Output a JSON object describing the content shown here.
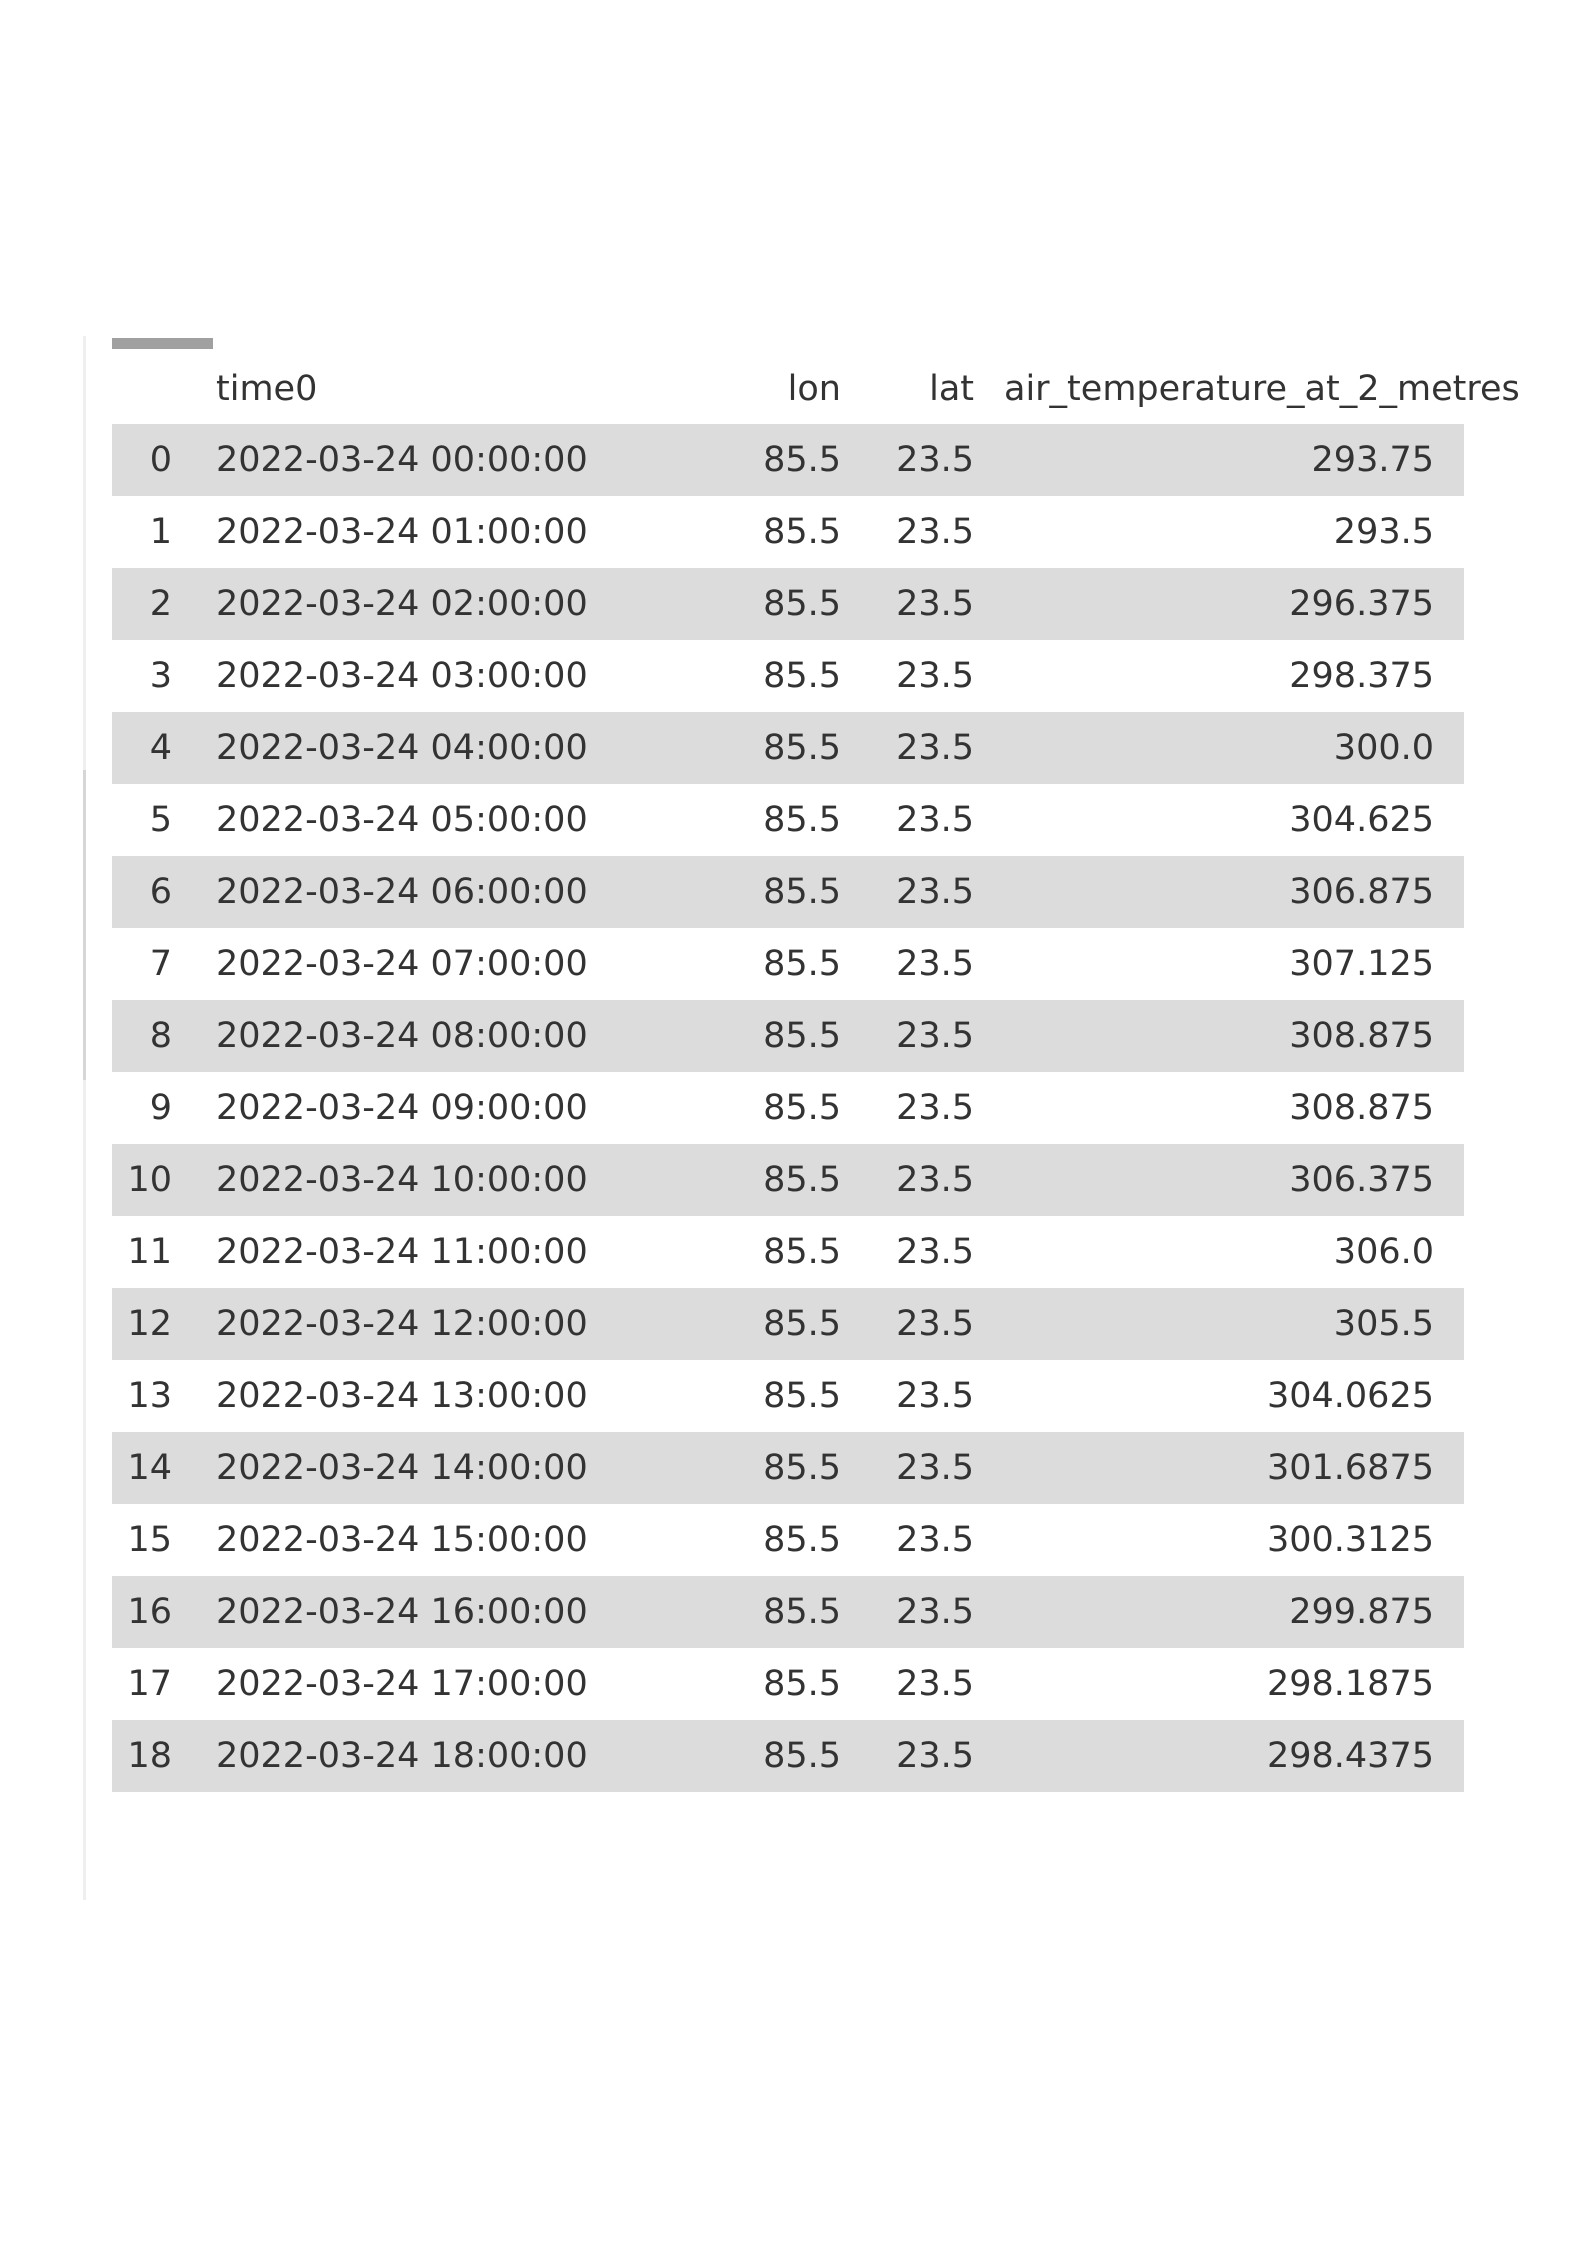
{
  "table": {
    "columns": [
      "",
      "time0",
      "lon",
      "lat",
      "air_temperature_at_2_metres"
    ],
    "rows": [
      [
        "0",
        "2022-03-24 00:00:00",
        "85.5",
        "23.5",
        "293.75"
      ],
      [
        "1",
        "2022-03-24 01:00:00",
        "85.5",
        "23.5",
        "293.5"
      ],
      [
        "2",
        "2022-03-24 02:00:00",
        "85.5",
        "23.5",
        "296.375"
      ],
      [
        "3",
        "2022-03-24 03:00:00",
        "85.5",
        "23.5",
        "298.375"
      ],
      [
        "4",
        "2022-03-24 04:00:00",
        "85.5",
        "23.5",
        "300.0"
      ],
      [
        "5",
        "2022-03-24 05:00:00",
        "85.5",
        "23.5",
        "304.625"
      ],
      [
        "6",
        "2022-03-24 06:00:00",
        "85.5",
        "23.5",
        "306.875"
      ],
      [
        "7",
        "2022-03-24 07:00:00",
        "85.5",
        "23.5",
        "307.125"
      ],
      [
        "8",
        "2022-03-24 08:00:00",
        "85.5",
        "23.5",
        "308.875"
      ],
      [
        "9",
        "2022-03-24 09:00:00",
        "85.5",
        "23.5",
        "308.875"
      ],
      [
        "10",
        "2022-03-24 10:00:00",
        "85.5",
        "23.5",
        "306.375"
      ],
      [
        "11",
        "2022-03-24 11:00:00",
        "85.5",
        "23.5",
        "306.0"
      ],
      [
        "12",
        "2022-03-24 12:00:00",
        "85.5",
        "23.5",
        "305.5"
      ],
      [
        "13",
        "2022-03-24 13:00:00",
        "85.5",
        "23.5",
        "304.0625"
      ],
      [
        "14",
        "2022-03-24 14:00:00",
        "85.5",
        "23.5",
        "301.6875"
      ],
      [
        "15",
        "2022-03-24 15:00:00",
        "85.5",
        "23.5",
        "300.3125"
      ],
      [
        "16",
        "2022-03-24 16:00:00",
        "85.5",
        "23.5",
        "299.875"
      ],
      [
        "17",
        "2022-03-24 17:00:00",
        "85.5",
        "23.5",
        "298.1875"
      ],
      [
        "18",
        "2022-03-24 18:00:00",
        "85.5",
        "23.5",
        "298.4375"
      ]
    ]
  },
  "colors": {
    "stripe": "#dcdcdc",
    "text": "#333333",
    "index_marker": "#a0a0a0"
  }
}
